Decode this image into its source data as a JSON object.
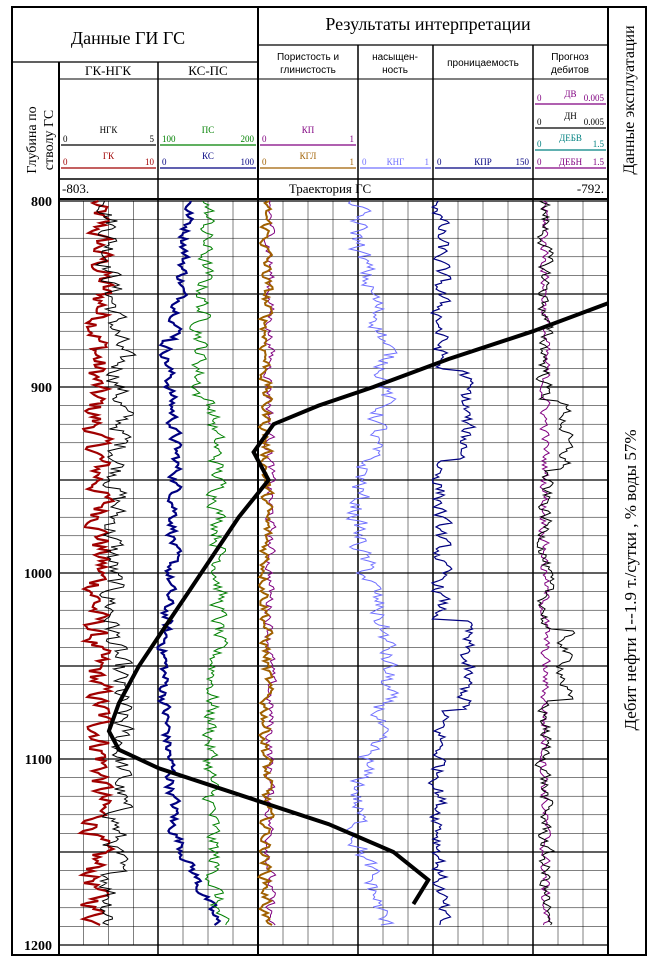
{
  "header": {
    "gis_data": "Данные  ГИ  ГС",
    "results": "Результаты интерпретации",
    "depth_axis": "Глубина по стволу ГС",
    "exploitation": "Данные эксплуатации",
    "trajectory": "Траектория ГС",
    "traj_left": "-803.",
    "traj_right": "-792."
  },
  "tracks": {
    "gk_ngk": "ГК-НГК",
    "ks_ps": "КС-ПС",
    "porosity": "Пористость и глинистость",
    "saturation": "насыщен-ность",
    "permeability": "проницаемость",
    "forecast": "Прогноз дебитов"
  },
  "scales": {
    "ngk": {
      "name": "НГК",
      "min": "0",
      "max": "5",
      "color": "#000000"
    },
    "gk": {
      "name": "ГК",
      "min": "0",
      "max": "10",
      "color": "#a00000"
    },
    "ps": {
      "name": "ПС",
      "min": "100",
      "max": "200",
      "color": "#008000"
    },
    "ks": {
      "name": "КС",
      "min": "0",
      "max": "100",
      "color": "#000080"
    },
    "kp": {
      "name": "КП",
      "min": "0",
      "max": "1",
      "color": "#800080"
    },
    "kgl": {
      "name": "КГЛ",
      "min": "0",
      "max": "1",
      "color": "#a06000"
    },
    "kng": {
      "name": "КНГ",
      "min": "0",
      "max": "1",
      "color": "#7070ff"
    },
    "kpr": {
      "name": "КПР",
      "min": "0",
      "max": "150",
      "color": "#000080"
    },
    "dv": {
      "name": "ДВ",
      "min": "0",
      "max": "0.005",
      "color": "#800080"
    },
    "dn": {
      "name": "ДН",
      "min": "0",
      "max": "0.005",
      "color": "#000000"
    },
    "debv": {
      "name": "ДЕБВ",
      "min": "0",
      "max": "1.5",
      "color": "#008080"
    },
    "debn": {
      "name": "ДЕБН",
      "min": "0",
      "max": "1.5",
      "color": "#800080"
    }
  },
  "exploitation_note": "Дебит    нефти    1--1.9 т./сутки   ,   % воды  57%",
  "chart_data": {
    "type": "line",
    "depth_ticks": [
      "800",
      "900",
      "1000",
      "1100",
      "1200"
    ],
    "depth_range": [
      800,
      1200
    ],
    "trajectory": {
      "name": "Траектория ГС",
      "depth": [
        855,
        870,
        885,
        900,
        910,
        920,
        935,
        950,
        970,
        990,
        1010,
        1030,
        1050,
        1070,
        1085,
        1095,
        1105,
        1120,
        1135,
        1150,
        1165,
        1178
      ],
      "abs_depth": [
        -792.0,
        -793.5,
        -795.2,
        -796.7,
        -797.8,
        -798.7,
        -799.1,
        -798.8,
        -799.4,
        -799.9,
        -800.4,
        -800.9,
        -801.4,
        -801.8,
        -802.0,
        -801.8,
        -801.0,
        -799.3,
        -797.6,
        -796.3,
        -795.6,
        -795.9
      ]
    },
    "curves": [
      {
        "name": "ГК",
        "track": "gk_ngk",
        "color": "#a00000"
      },
      {
        "name": "НГК",
        "track": "gk_ngk",
        "color": "#000000"
      },
      {
        "name": "КС",
        "track": "ks_ps",
        "color": "#000080"
      },
      {
        "name": "ПС",
        "track": "ks_ps",
        "color": "#008000"
      },
      {
        "name": "КП",
        "track": "porosity",
        "color": "#800080"
      },
      {
        "name": "КГЛ",
        "track": "porosity",
        "color": "#a06000"
      },
      {
        "name": "КНГ",
        "track": "saturation",
        "color": "#7070ff"
      },
      {
        "name": "КПР",
        "track": "permeability",
        "color": "#000080"
      },
      {
        "name": "ДЕБН",
        "track": "forecast",
        "color": "#800080"
      },
      {
        "name": "ДН",
        "track": "forecast",
        "color": "#000000"
      }
    ]
  }
}
